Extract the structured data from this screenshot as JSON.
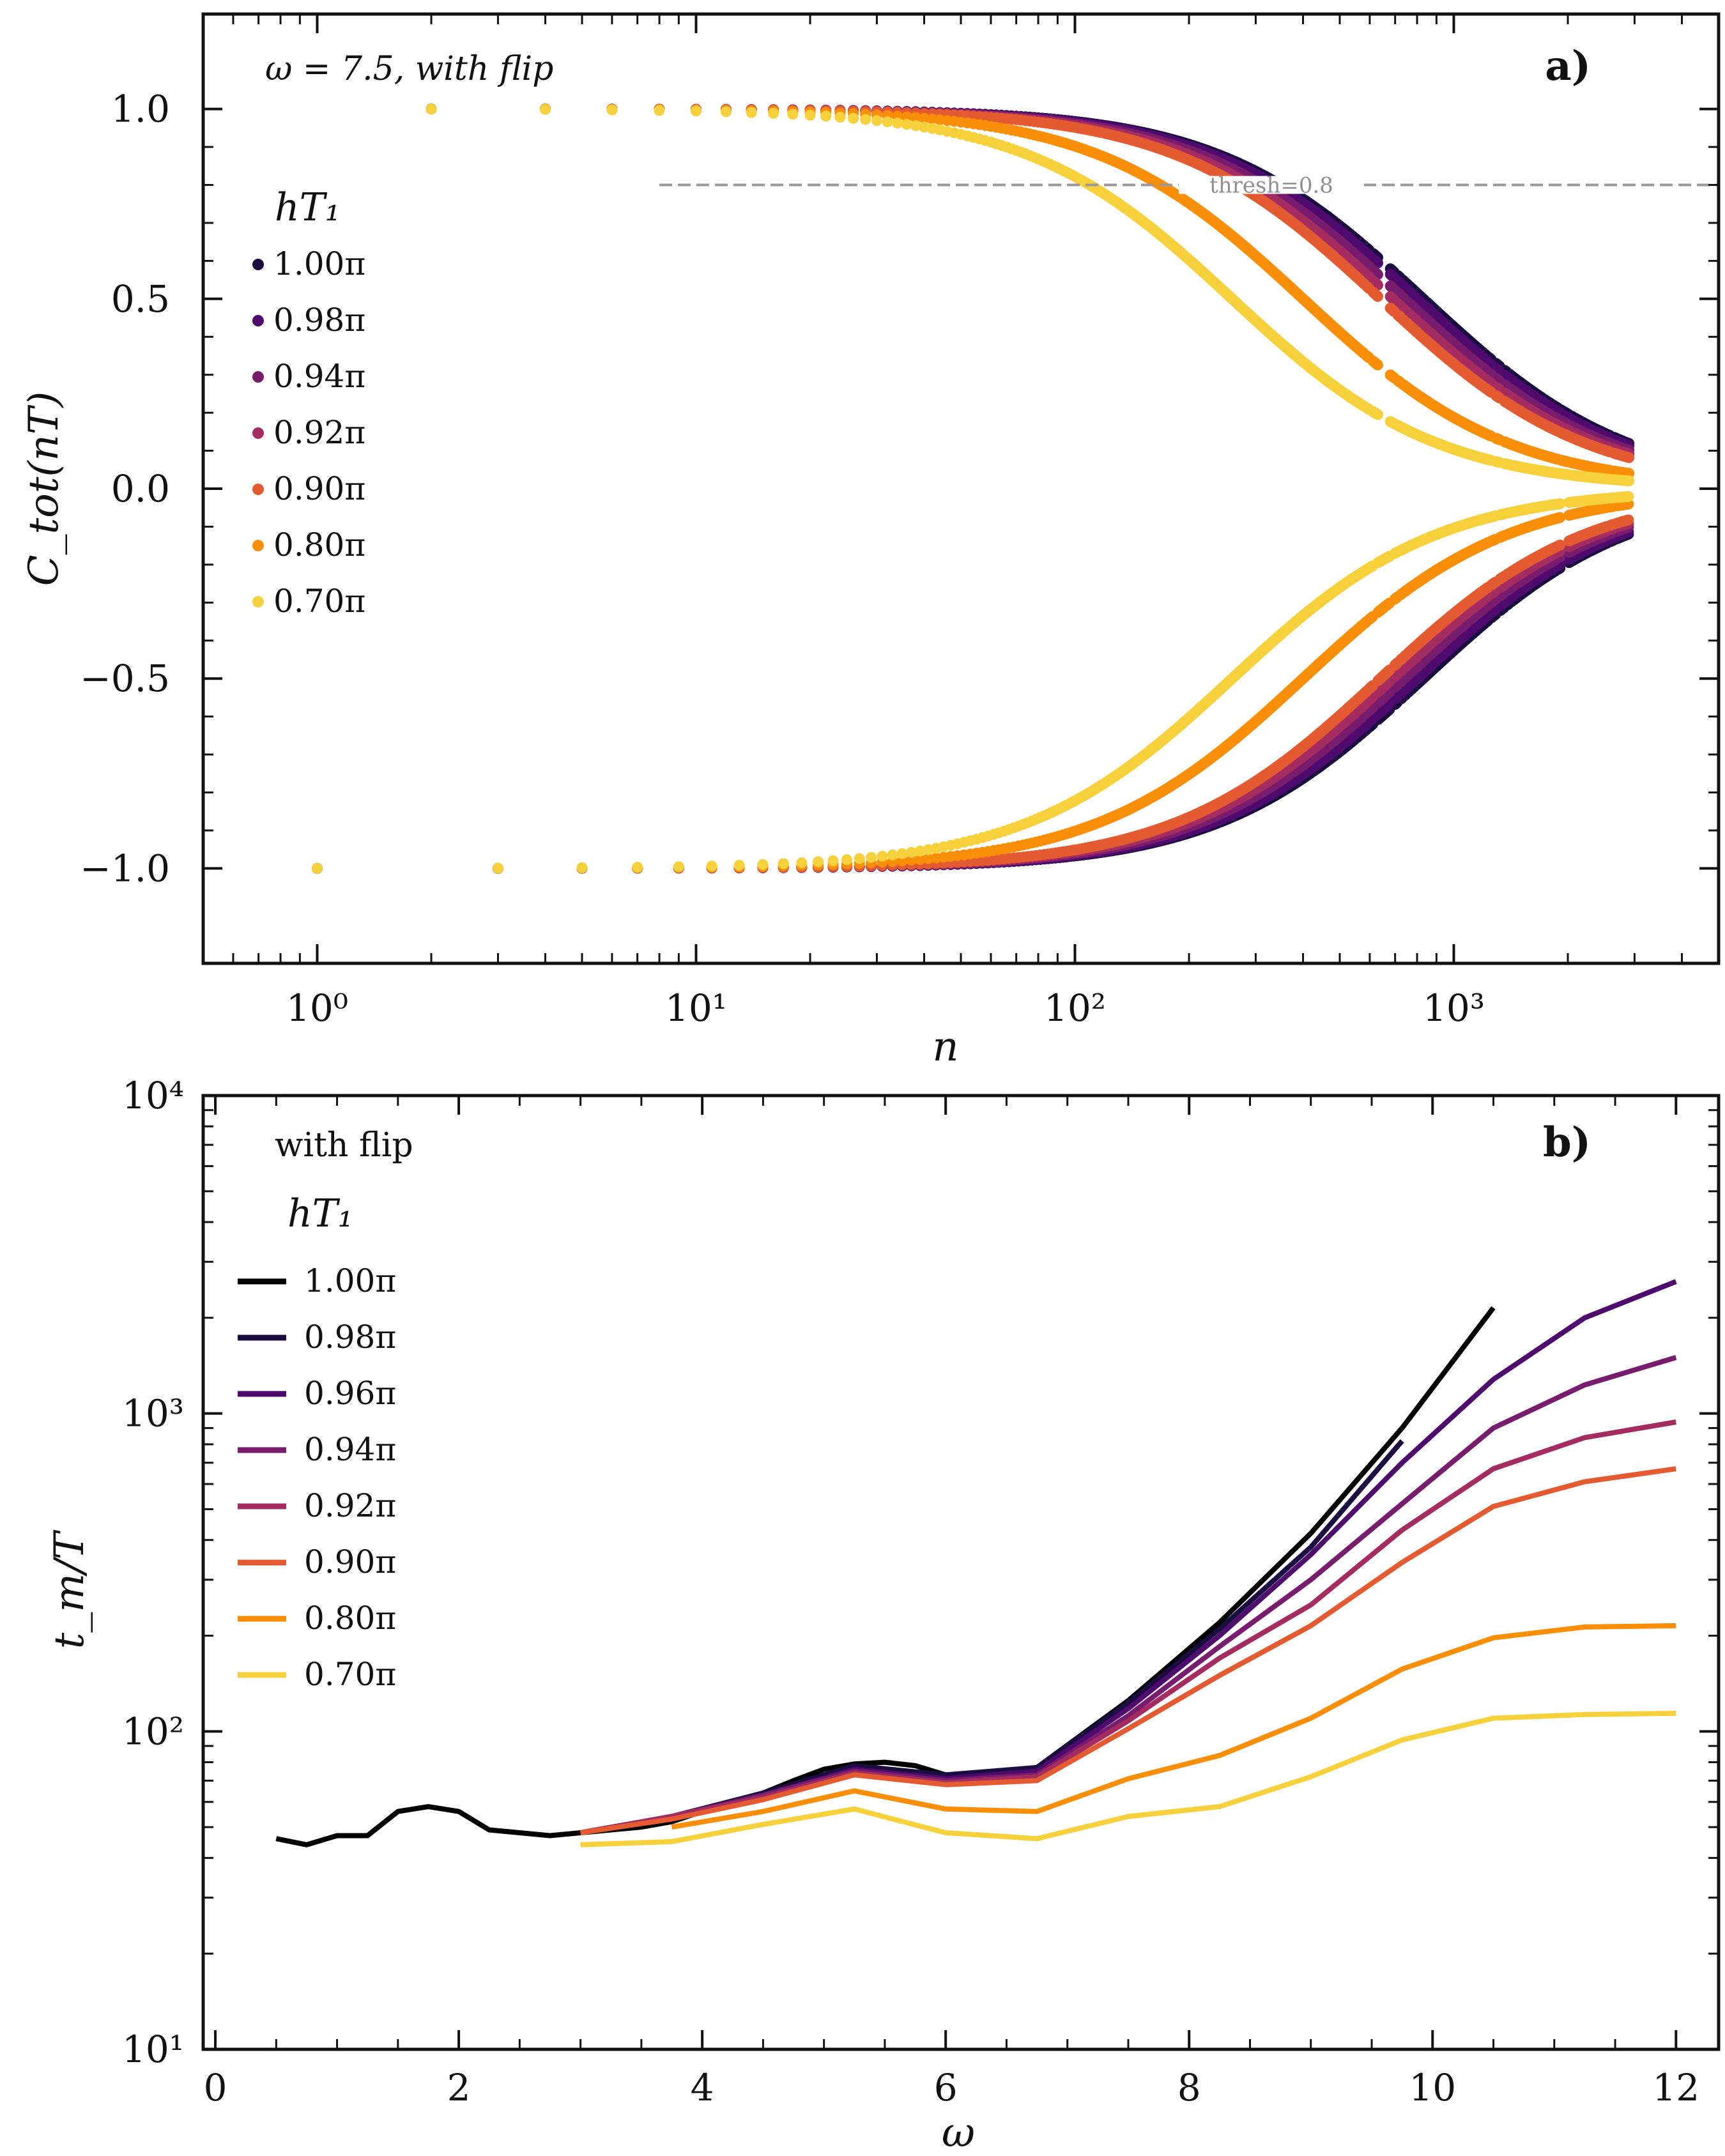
{
  "chart_data": [
    {
      "type": "scatter",
      "panel_label": "a)",
      "annotation": "ω = 7.5, with flip",
      "xlabel": "n",
      "ylabel": "C_tot(nT)",
      "xscale": "log",
      "xlim": [
        0.5,
        5000
      ],
      "ylim": [
        -1.25,
        1.25
      ],
      "x_ticks": [
        {
          "value": 1,
          "label": "10⁰"
        },
        {
          "value": 10,
          "label": "10¹"
        },
        {
          "value": 100,
          "label": "10²"
        },
        {
          "value": 1000,
          "label": "10³"
        }
      ],
      "y_ticks": [
        {
          "value": 1.0,
          "label": "1.0"
        },
        {
          "value": 0.5,
          "label": "0.5"
        },
        {
          "value": 0.0,
          "label": "0.0"
        },
        {
          "value": -0.5,
          "label": "−0.5"
        },
        {
          "value": -1.0,
          "label": "−1.0"
        }
      ],
      "threshold": {
        "value": 0.8,
        "label": "thresh=0.8",
        "x_start": 8,
        "x_end": 5000
      },
      "legend_title": "hT₁",
      "legend_position": "upper-left",
      "n_max": 2900,
      "series": [
        {
          "name": "1.00π",
          "color": "#1b0c41",
          "envelope_tau": 830
        },
        {
          "name": "0.98π",
          "color": "#4f0a6d",
          "envelope_tau": 800
        },
        {
          "name": "0.94π",
          "color": "#781c6d",
          "envelope_tau": 740
        },
        {
          "name": "0.92π",
          "color": "#a52c60",
          "envelope_tau": 690
        },
        {
          "name": "0.90π",
          "color": "#e45a31",
          "envelope_tau": 640
        },
        {
          "name": "0.80π",
          "color": "#f98e09",
          "envelope_tau": 400
        },
        {
          "name": "0.70π",
          "color": "#f6d13b",
          "envelope_tau": 260
        }
      ]
    },
    {
      "type": "line",
      "panel_label": "b)",
      "annotation": "with flip",
      "xlabel": "ω",
      "ylabel": "t_m/T",
      "yscale": "log",
      "xlim": [
        -0.1,
        12.35
      ],
      "ylim": [
        10,
        10000
      ],
      "x_ticks": [
        {
          "value": 0,
          "label": "0"
        },
        {
          "value": 2,
          "label": "2"
        },
        {
          "value": 4,
          "label": "4"
        },
        {
          "value": 6,
          "label": "6"
        },
        {
          "value": 8,
          "label": "8"
        },
        {
          "value": 10,
          "label": "10"
        },
        {
          "value": 12,
          "label": "12"
        }
      ],
      "y_ticks": [
        {
          "value": 10,
          "label": "10¹"
        },
        {
          "value": 100,
          "label": "10²"
        },
        {
          "value": 1000,
          "label": "10³"
        },
        {
          "value": 10000,
          "label": "10⁴"
        }
      ],
      "legend_title": "hT₁",
      "legend_position": "upper-left",
      "series": [
        {
          "name": "1.00π",
          "color": "#000000",
          "x": [
            0.5,
            0.75,
            1,
            1.25,
            1.5,
            1.75,
            2,
            2.25,
            2.5,
            2.75,
            3,
            3.25,
            3.5,
            3.75,
            4,
            4.25,
            4.5,
            4.75,
            5,
            5.25,
            5.5,
            5.75,
            6,
            6.25,
            6.5,
            6.75,
            7.5,
            8.25,
            9,
            9.75,
            10.5
          ],
          "y": [
            46,
            44,
            47,
            47,
            56,
            58,
            56,
            49,
            48,
            47,
            48,
            49,
            50,
            52,
            56,
            60,
            64,
            70,
            76,
            79,
            80,
            78,
            73,
            73,
            75,
            77,
            125,
            220,
            420,
            900,
            2150
          ]
        },
        {
          "name": "0.98π",
          "color": "#1b0c41",
          "x": [
            3,
            3.75,
            4.5,
            5.25,
            6,
            6.75,
            7.5,
            8.25,
            9,
            9.75
          ],
          "y": [
            48,
            54,
            64,
            78,
            73,
            77,
            123,
            210,
            380,
            820
          ]
        },
        {
          "name": "0.96π",
          "color": "#4f0a6d",
          "x": [
            3,
            3.75,
            4.5,
            5.25,
            6,
            6.75,
            7.5,
            8.25,
            9,
            9.75,
            10.5,
            11.25,
            12
          ],
          "y": [
            48,
            54,
            63,
            76,
            71,
            75,
            118,
            200,
            360,
            700,
            1280,
            2000,
            2600
          ]
        },
        {
          "name": "0.94π",
          "color": "#781c6d",
          "x": [
            3,
            3.75,
            4.5,
            5.25,
            6,
            6.75,
            7.5,
            8.25,
            9,
            9.75,
            10.5,
            11.25,
            12
          ],
          "y": [
            48,
            54,
            63,
            75,
            70,
            73,
            112,
            185,
            300,
            520,
            900,
            1230,
            1500
          ]
        },
        {
          "name": "0.92π",
          "color": "#a52c60",
          "x": [
            3,
            3.75,
            4.5,
            5.25,
            6,
            6.75,
            7.5,
            8.25,
            9,
            9.75,
            10.5,
            11.25,
            12
          ],
          "y": [
            48,
            54,
            62,
            74,
            69,
            72,
            108,
            170,
            250,
            430,
            670,
            840,
            940
          ]
        },
        {
          "name": "0.90π",
          "color": "#e45a31",
          "x": [
            3,
            3.75,
            4.5,
            5.25,
            6,
            6.75,
            7.5,
            8.25,
            9,
            9.75,
            10.5,
            11.25,
            12
          ],
          "y": [
            48,
            53,
            61,
            73,
            68,
            70,
            102,
            150,
            215,
            340,
            510,
            610,
            670
          ]
        },
        {
          "name": "0.80π",
          "color": "#f98e09",
          "x": [
            3.75,
            4.5,
            5.25,
            6,
            6.75,
            7.5,
            8.25,
            9,
            9.75,
            10.5,
            11.25,
            12
          ],
          "y": [
            50,
            56,
            65,
            57,
            56,
            71,
            84,
            110,
            157,
            197,
            213,
            215
          ]
        },
        {
          "name": "0.70π",
          "color": "#f6d13b",
          "x": [
            3,
            3.75,
            4.5,
            5.25,
            6,
            6.75,
            7.5,
            8.25,
            9,
            9.75,
            10.5,
            11.25,
            12
          ],
          "y": [
            44,
            45,
            51,
            57,
            48,
            46,
            54,
            58,
            72,
            94,
            110,
            113,
            114
          ]
        }
      ]
    }
  ]
}
